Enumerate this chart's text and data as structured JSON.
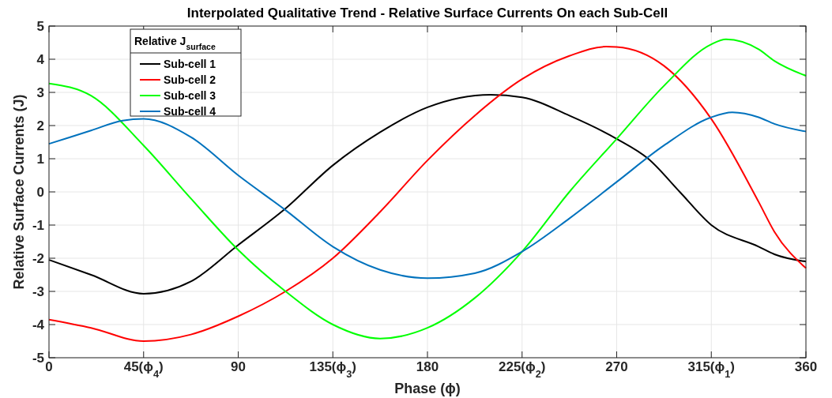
{
  "chart_data": {
    "type": "line",
    "title": "Interpolated Qualitative Trend - Relative Surface Currents On each Sub-Cell",
    "xlabel": "Phase (ϕ)",
    "ylabel": "Relative Surface Currents (J)",
    "legend_title": "Relative J$_{surface}$",
    "legend": "top left",
    "grid": true,
    "line_style": "solid",
    "marker": "none",
    "xlim": [
      0,
      360
    ],
    "ylim": [
      -5,
      5
    ],
    "xticks": [
      0,
      {
        "value": 45,
        "label": "45(ϕ$_{4}$)"
      },
      90,
      {
        "value": 135,
        "label": "135(ϕ$_{3}$)"
      },
      180,
      {
        "value": 225,
        "label": "225(ϕ$_{2}$)"
      },
      270,
      {
        "value": 315,
        "label": "315(ϕ$_{1}$)"
      },
      360
    ],
    "yticks": [
      -5,
      -4,
      -3,
      -2,
      -1,
      0,
      1,
      2,
      3,
      4,
      5
    ],
    "series": [
      {
        "name": "Sub-cell 1",
        "color": "#000000",
        "x": [
          0,
          20,
          45,
          67.5,
          90,
          112.5,
          135,
          157.5,
          180,
          210,
          225,
          247.5,
          270,
          285,
          300,
          315,
          337.5,
          345,
          360
        ],
        "values": [
          -2.05,
          -2.5,
          -3.07,
          -2.7,
          -1.6,
          -0.5,
          0.8,
          1.8,
          2.55,
          2.93,
          2.85,
          2.3,
          1.6,
          1.0,
          0.0,
          -1.0,
          -1.65,
          -1.88,
          -2.1
        ]
      },
      {
        "name": "Sub-cell 2",
        "color": "#ff0000",
        "x": [
          0,
          20,
          45,
          67.5,
          90,
          112.5,
          135,
          157.5,
          180,
          202.5,
          225,
          247.5,
          265,
          270,
          292.5,
          315,
          337.5,
          345,
          360
        ],
        "values": [
          -3.85,
          -4.1,
          -4.5,
          -4.3,
          -3.75,
          -3.0,
          -2.0,
          -0.6,
          0.95,
          2.3,
          3.4,
          4.1,
          4.38,
          4.37,
          3.8,
          2.2,
          -0.3,
          -1.2,
          -2.3
        ]
      },
      {
        "name": "Sub-cell 3",
        "color": "#00ff00",
        "x": [
          0,
          20,
          45,
          67.5,
          90,
          112.5,
          135,
          157.5,
          180,
          202.5,
          225,
          247.5,
          270,
          292.5,
          315,
          322,
          337.5,
          345,
          360
        ],
        "values": [
          3.27,
          2.9,
          1.4,
          -0.2,
          -1.75,
          -3.0,
          -4.0,
          -4.42,
          -4.1,
          -3.2,
          -1.8,
          0,
          1.6,
          3.2,
          4.45,
          4.6,
          4.3,
          3.95,
          3.5
        ]
      },
      {
        "name": "Sub-cell 4",
        "color": "#0072bd",
        "x": [
          0,
          20,
          35,
          45,
          67.5,
          90,
          112.5,
          135,
          157.5,
          180,
          202.5,
          225,
          247.5,
          270,
          292.5,
          315,
          325,
          337.5,
          345,
          360
        ],
        "values": [
          1.45,
          1.85,
          2.15,
          2.2,
          1.65,
          0.5,
          -0.55,
          -1.65,
          -2.35,
          -2.6,
          -2.45,
          -1.8,
          -0.8,
          0.3,
          1.4,
          2.25,
          2.4,
          2.25,
          2.05,
          1.82
        ]
      }
    ]
  }
}
